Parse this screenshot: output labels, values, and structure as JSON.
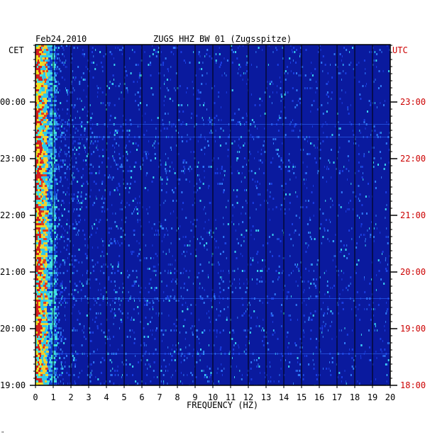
{
  "chart_data": {
    "type": "heatmap",
    "date": "Feb24,2010",
    "station": "ZUGS HHZ BW 01 (Zugsspitze)",
    "xlabel": "FREQUENCY (HZ)",
    "xlim": [
      0,
      20
    ],
    "x_ticks": [
      "0",
      "1",
      "2",
      "3",
      "4",
      "5",
      "6",
      "7",
      "8",
      "9",
      "10",
      "11",
      "12",
      "13",
      "14",
      "15",
      "16",
      "17",
      "18",
      "19",
      "20"
    ],
    "left_axis_label": "CET",
    "right_axis_label": "UTC",
    "left_ticks": [
      "00:00",
      "23:00",
      "22:00",
      "21:00",
      "20:00",
      "19:00"
    ],
    "right_ticks": [
      "23:00",
      "22:00",
      "21:00",
      "20:00",
      "19:00",
      "18:00"
    ],
    "colors": {
      "background": "#0a1a9e",
      "accent_left": "#cc0000",
      "accent_right": "#cc0000"
    },
    "description": "spectrogram: energy concentrated below 1 Hz (red/yellow/cyan), mostly blue elsewhere"
  },
  "footnote": "\""
}
